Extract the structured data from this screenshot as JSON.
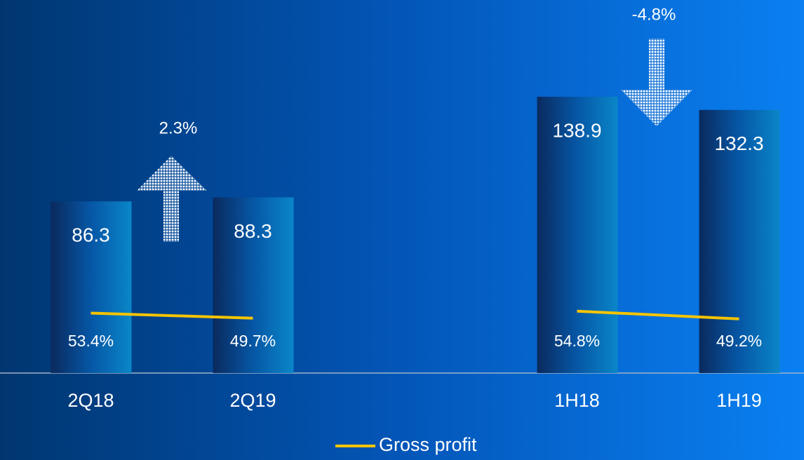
{
  "chart_data": {
    "type": "bar",
    "categories": [
      "2Q18",
      "2Q19",
      null,
      "1H18",
      "1H19"
    ],
    "values": [
      86.3,
      88.3,
      null,
      138.9,
      132.3
    ],
    "color": "#0a86c8",
    "ylim": [
      0,
      138.9
    ],
    "y2lim": [
      10,
      210
    ],
    "series": [
      {
        "name": "Gross profit",
        "color": "#f5c400",
        "axis": "y2",
        "type": "line",
        "values": [
          53.4,
          49.7,
          null,
          54.8,
          49.2
        ],
        "value_labels": [
          "53.4%",
          "49.7%",
          null,
          "54.8%",
          "49.2%"
        ]
      }
    ],
    "annotations": [
      "2.3%",
      "-4.8%"
    ],
    "legend": "bottom"
  }
}
